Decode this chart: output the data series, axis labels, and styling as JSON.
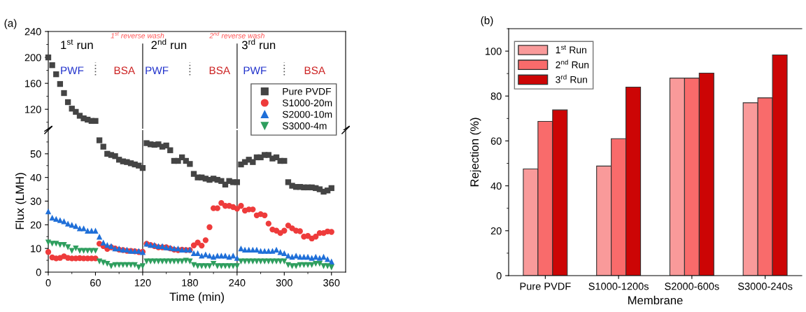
{
  "chart_data": [
    {
      "type": "scatter",
      "ylim": [
        90,
        240
      ],
      "yticks": [
        120,
        160,
        200,
        240
      ],
      "xlim": [
        0,
        378
      ],
      "tick_labels": "y",
      "marker": "square",
      "annotations": [
        "(a)",
        "1$^{st}$ run",
        "PWF",
        "BSA",
        "2$^{nd}$ run",
        "PWF",
        "BSA",
        "3$^{rd}$ run",
        "PWF",
        "BSA",
        "1$^{st}$ reverse wash",
        "2$^{nd}$ reverse wash"
      ],
      "ref_lines": [
        {
          "axis": "x",
          "value": 120,
          "color": "#555555"
        },
        {
          "axis": "x",
          "value": 240,
          "color": "#555555"
        },
        {
          "axis": "x",
          "value": 60,
          "color": "#555555",
          "line_style": "dotted"
        },
        {
          "axis": "x",
          "value": 180,
          "color": "#555555",
          "line_style": "dotted"
        },
        {
          "axis": "x",
          "value": 300,
          "color": "#555555",
          "line_style": "dotted"
        }
      ],
      "series": [
        {
          "color": "#444444",
          "x": [
            0,
            5,
            10,
            15,
            20,
            25,
            30,
            35,
            40,
            45,
            50,
            55,
            60
          ],
          "values": [
            200,
            188,
            174,
            159,
            145,
            131,
            121,
            116,
            110,
            106,
            104,
            102,
            102
          ]
        }
      ]
    },
    {
      "type": "scatter",
      "ylim": [
        0,
        60
      ],
      "yticks": [
        0,
        10,
        20,
        30,
        40,
        50
      ],
      "xlim": [
        0,
        378
      ],
      "xticks": [
        0,
        60,
        120,
        180,
        240,
        300,
        360
      ],
      "xlabel": "Time (min)",
      "ylabel": "Flux (LMH)",
      "legend": "top right",
      "ref_lines": [
        {
          "axis": "x",
          "value": 120,
          "color": "#555555"
        },
        {
          "axis": "x",
          "value": 240,
          "color": "#555555"
        }
      ],
      "series": [
        {
          "name": "Pure PVDF",
          "color": "#444444",
          "marker": "square",
          "x": [
            65,
            70,
            75,
            80,
            85,
            90,
            95,
            100,
            105,
            110,
            115,
            120,
            125,
            130,
            135,
            140,
            145,
            150,
            155,
            160,
            165,
            170,
            175,
            180,
            185,
            190,
            195,
            200,
            205,
            210,
            215,
            220,
            225,
            230,
            235,
            240,
            245,
            250,
            255,
            260,
            265,
            270,
            275,
            280,
            285,
            290,
            295,
            300,
            305,
            310,
            315,
            320,
            325,
            330,
            335,
            340,
            345,
            350,
            355,
            360
          ],
          "values": [
            55.7,
            53,
            50,
            49.5,
            49,
            47.5,
            46.8,
            46.5,
            46,
            45.5,
            45,
            44,
            54.5,
            54,
            53.8,
            54,
            53,
            53.5,
            51.5,
            47,
            47,
            48.5,
            47,
            45.7,
            41.5,
            40,
            40,
            39.5,
            39,
            39.5,
            39,
            38.5,
            37,
            38.5,
            38,
            38,
            45.5,
            46.5,
            47.5,
            46.5,
            48.5,
            48.5,
            49.5,
            49.5,
            48,
            48.5,
            47,
            47,
            38,
            36.5,
            36,
            36,
            35.8,
            35.8,
            35.8,
            35.5,
            35,
            34,
            34.5,
            35.5
          ]
        },
        {
          "name": "S1000-20m",
          "color": "#ee3b3b",
          "marker": "circle",
          "x": [
            0,
            5,
            10,
            15,
            20,
            25,
            30,
            35,
            40,
            45,
            50,
            55,
            60,
            65,
            70,
            75,
            80,
            85,
            90,
            95,
            100,
            105,
            110,
            115,
            120,
            125,
            130,
            135,
            140,
            145,
            150,
            155,
            160,
            165,
            170,
            175,
            180,
            185,
            190,
            195,
            200,
            205,
            210,
            215,
            220,
            225,
            230,
            235,
            240,
            245,
            250,
            255,
            260,
            265,
            270,
            275,
            280,
            285,
            290,
            295,
            300,
            305,
            310,
            315,
            320,
            325,
            330,
            335,
            340,
            345,
            350,
            355,
            360
          ],
          "values": [
            8.5,
            6.2,
            5.8,
            6,
            6.7,
            6,
            5.8,
            5.8,
            5.9,
            5.8,
            5.8,
            5.8,
            5.8,
            12,
            11,
            9.8,
            10.5,
            10,
            9.5,
            9.3,
            9,
            9,
            8.8,
            8.5,
            8.6,
            12,
            11.5,
            11,
            10.5,
            10.5,
            10.5,
            10,
            9.5,
            9.3,
            9.5,
            9.3,
            9.3,
            11.3,
            12.5,
            11.2,
            13.5,
            19,
            27,
            27,
            29.2,
            28,
            28,
            27.5,
            26.8,
            28,
            26,
            26.5,
            26.5,
            24,
            24.5,
            24,
            20.5,
            18,
            17.5,
            16.5,
            17.5,
            19.7,
            18.5,
            17.5,
            17.3,
            15,
            15.3,
            14.2,
            15,
            16.5,
            16.5,
            17.2,
            17
          ]
        },
        {
          "name": "S2000-10m",
          "color": "#1f6fd8",
          "marker": "triangle",
          "x": [
            0,
            5,
            10,
            15,
            20,
            25,
            30,
            35,
            40,
            45,
            50,
            55,
            60,
            65,
            70,
            75,
            80,
            85,
            90,
            95,
            100,
            105,
            110,
            115,
            120,
            125,
            130,
            135,
            140,
            145,
            150,
            155,
            160,
            165,
            170,
            175,
            180,
            185,
            190,
            195,
            200,
            205,
            210,
            215,
            220,
            225,
            230,
            235,
            240,
            245,
            250,
            255,
            260,
            265,
            270,
            275,
            280,
            285,
            290,
            295,
            300,
            305,
            310,
            315,
            320,
            325,
            330,
            335,
            340,
            345,
            350,
            355,
            360
          ],
          "values": [
            25.7,
            23,
            22.5,
            22,
            21.5,
            20.5,
            20,
            19.5,
            18.5,
            18.5,
            17.5,
            17.5,
            17.5,
            15,
            12.5,
            11.5,
            11,
            10,
            10,
            9.5,
            9.5,
            9,
            9,
            9,
            8.5,
            12,
            11.5,
            11.5,
            11,
            11,
            10.5,
            10.3,
            10,
            10,
            9.5,
            9.5,
            9.5,
            8,
            8,
            7,
            7.5,
            7,
            6.5,
            7,
            7,
            7,
            6.5,
            7,
            6,
            10,
            9.5,
            9.5,
            9.5,
            9.5,
            9,
            9,
            9,
            9,
            9.5,
            8.5,
            8,
            7,
            6.5,
            7,
            6.5,
            6.5,
            6.5,
            6,
            6.5,
            6,
            6.5,
            5.5,
            4.5
          ]
        },
        {
          "name": "S3000-4m",
          "color": "#2e9e5e",
          "marker": "triangle_down",
          "x": [
            0,
            5,
            10,
            15,
            20,
            25,
            30,
            35,
            40,
            45,
            50,
            55,
            60,
            65,
            70,
            75,
            80,
            85,
            90,
            95,
            100,
            105,
            110,
            115,
            120,
            125,
            130,
            135,
            140,
            145,
            150,
            155,
            160,
            165,
            170,
            175,
            180,
            185,
            190,
            195,
            200,
            205,
            210,
            215,
            220,
            225,
            230,
            235,
            240,
            245,
            250,
            255,
            260,
            265,
            270,
            275,
            280,
            285,
            290,
            295,
            300,
            305,
            310,
            315,
            320,
            325,
            330,
            335,
            340,
            345,
            350,
            355,
            360
          ],
          "values": [
            12.5,
            12,
            12,
            11.5,
            11.5,
            10.5,
            9,
            10,
            9,
            9,
            9,
            9,
            9,
            4.5,
            4,
            3.5,
            2.5,
            3,
            3,
            3,
            3,
            3,
            3,
            2,
            2.5,
            4.5,
            4.5,
            4.5,
            4.5,
            4.5,
            4.5,
            4.5,
            4.5,
            4.5,
            4.5,
            4.8,
            4.5,
            3,
            2.5,
            2.5,
            2.5,
            2.5,
            3.5,
            2.5,
            2.5,
            2.5,
            2.5,
            2.5,
            2.5,
            4.5,
            4.5,
            4.5,
            4.5,
            4.5,
            4.5,
            4.5,
            4.5,
            4.5,
            4.5,
            4.5,
            4.5,
            3,
            2.5,
            2.5,
            3,
            3,
            3,
            3,
            3.5,
            3.5,
            2.5,
            2.5,
            2
          ]
        }
      ]
    },
    {
      "type": "bar",
      "annotations": [
        "(b)"
      ],
      "categories": [
        "Pure PVDF",
        "S1000-1200s",
        "S2000-600s",
        "S3000-240s"
      ],
      "xlabel": "Membrane",
      "ylabel": "Rejection (%)",
      "ylim": [
        0,
        110
      ],
      "yticks": [
        0,
        20,
        40,
        60,
        80,
        100
      ],
      "legend": "top left",
      "series": [
        {
          "name": "1$^{st}$ Run",
          "color": "#f99a9a",
          "values": [
            47.5,
            48.8,
            88,
            77
          ]
        },
        {
          "name": "2$^{nd}$ Run",
          "color": "#f96b6b",
          "values": [
            68.7,
            61,
            88,
            79.2
          ]
        },
        {
          "name": "3$^{rd}$ Run",
          "color": "#cc0505",
          "values": [
            73.8,
            84,
            90.2,
            98.3
          ]
        }
      ]
    }
  ]
}
